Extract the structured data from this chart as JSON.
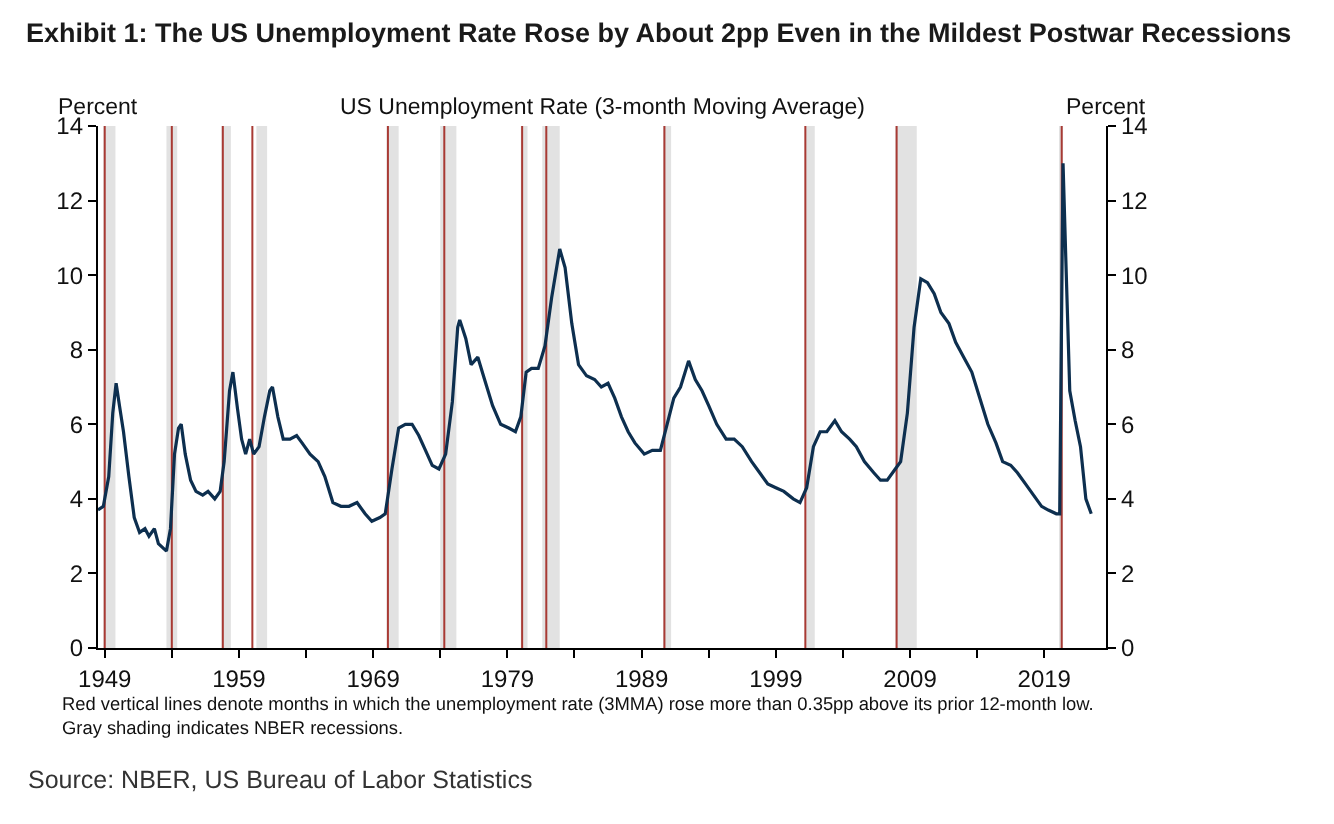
{
  "chart_data": {
    "type": "line",
    "title": "Exhibit 1: The US Unemployment Rate Rose by About 2pp Even in the Mildest Postwar Recessions",
    "subtitle": "US Unemployment Rate (3-month Moving Average)",
    "ylabel": "Percent",
    "y2label": "Percent",
    "x": [
      1948.5,
      1948.9,
      1949.3,
      1949.6,
      1949.85,
      1950.1,
      1950.4,
      1950.8,
      1951.2,
      1951.6,
      1952.0,
      1952.3,
      1952.7,
      1953.0,
      1953.6,
      1953.9,
      1954.2,
      1954.5,
      1954.7,
      1955.0,
      1955.4,
      1955.8,
      1956.3,
      1956.7,
      1957.2,
      1957.6,
      1957.9,
      1958.3,
      1958.55,
      1958.9,
      1959.2,
      1959.5,
      1959.8,
      1960.1,
      1960.5,
      1960.9,
      1961.3,
      1961.5,
      1961.9,
      1962.3,
      1962.8,
      1963.3,
      1963.7,
      1964.3,
      1964.9,
      1965.4,
      1966.0,
      1966.6,
      1967.2,
      1967.8,
      1968.4,
      1968.9,
      1969.5,
      1969.9,
      1970.4,
      1970.9,
      1971.4,
      1971.9,
      1972.4,
      1972.9,
      1973.4,
      1973.9,
      1974.4,
      1974.9,
      1975.3,
      1975.45,
      1975.9,
      1976.3,
      1976.8,
      1977.3,
      1977.9,
      1978.5,
      1979.1,
      1979.6,
      1980.0,
      1980.4,
      1980.8,
      1981.3,
      1981.8,
      1982.3,
      1982.9,
      1983.3,
      1983.8,
      1984.3,
      1984.9,
      1985.5,
      1986.0,
      1986.5,
      1987.0,
      1987.5,
      1988.0,
      1988.5,
      1989.2,
      1989.8,
      1990.4,
      1990.9,
      1991.4,
      1991.9,
      1992.5,
      1993.0,
      1993.5,
      1994.0,
      1994.6,
      1995.3,
      1995.9,
      1996.5,
      1997.2,
      1997.8,
      1998.4,
      1999.0,
      1999.6,
      2000.3,
      2000.8,
      2001.3,
      2001.8,
      2002.3,
      2002.8,
      2003.4,
      2003.9,
      2004.5,
      2005.0,
      2005.6,
      2006.3,
      2006.8,
      2007.3,
      2007.9,
      2008.3,
      2008.8,
      2009.3,
      2009.8,
      2010.3,
      2010.8,
      2011.3,
      2011.9,
      2012.4,
      2013.0,
      2013.6,
      2014.2,
      2014.8,
      2015.4,
      2015.9,
      2016.5,
      2017.0,
      2017.6,
      2018.2,
      2018.8,
      2019.3,
      2019.9,
      2020.15,
      2020.4,
      2020.6,
      2020.9,
      2021.3,
      2021.7,
      2022.1,
      2022.5
    ],
    "series": [
      {
        "color": "#0d2f4f",
        "values": [
          3.7,
          3.8,
          4.6,
          6.3,
          7.1,
          6.5,
          5.8,
          4.6,
          3.5,
          3.1,
          3.2,
          3.0,
          3.2,
          2.8,
          2.6,
          3.2,
          5.2,
          5.9,
          6.0,
          5.2,
          4.5,
          4.2,
          4.1,
          4.2,
          4.0,
          4.2,
          5.0,
          6.9,
          7.4,
          6.4,
          5.6,
          5.2,
          5.6,
          5.2,
          5.4,
          6.2,
          6.9,
          7.0,
          6.2,
          5.6,
          5.6,
          5.7,
          5.5,
          5.2,
          5.0,
          4.6,
          3.9,
          3.8,
          3.8,
          3.9,
          3.6,
          3.4,
          3.5,
          3.6,
          4.8,
          5.9,
          6.0,
          6.0,
          5.7,
          5.3,
          4.9,
          4.8,
          5.2,
          6.6,
          8.6,
          8.8,
          8.3,
          7.6,
          7.8,
          7.2,
          6.5,
          6.0,
          5.9,
          5.8,
          6.2,
          7.4,
          7.5,
          7.5,
          8.1,
          9.4,
          10.7,
          10.2,
          8.7,
          7.6,
          7.3,
          7.2,
          7.0,
          7.1,
          6.7,
          6.2,
          5.8,
          5.5,
          5.2,
          5.3,
          5.3,
          6.0,
          6.7,
          7.0,
          7.7,
          7.2,
          6.9,
          6.5,
          6.0,
          5.6,
          5.6,
          5.4,
          5.0,
          4.7,
          4.4,
          4.3,
          4.2,
          4.0,
          3.9,
          4.3,
          5.4,
          5.8,
          5.8,
          6.1,
          5.8,
          5.6,
          5.4,
          5.0,
          4.7,
          4.5,
          4.5,
          4.8,
          5.0,
          6.3,
          8.6,
          9.9,
          9.8,
          9.5,
          9.0,
          8.7,
          8.2,
          7.8,
          7.4,
          6.7,
          6.0,
          5.5,
          5.0,
          4.9,
          4.7,
          4.4,
          4.1,
          3.8,
          3.7,
          3.6,
          3.6,
          13.0,
          10.5,
          6.9,
          6.1,
          5.4,
          4.0,
          3.6
        ]
      }
    ],
    "xlim": [
      1948.5,
      2023.6
    ],
    "xticks": [
      1949,
      {
        "value": 1954,
        "label": null
      },
      1959,
      {
        "value": 1964,
        "label": null
      },
      1969,
      {
        "value": 1974,
        "label": null
      },
      1979,
      {
        "value": 1984,
        "label": null
      },
      1989,
      {
        "value": 1994,
        "label": null
      },
      1999,
      {
        "value": 2004,
        "label": null
      },
      2009,
      {
        "value": 2014,
        "label": null
      },
      2019
    ],
    "ylim": [
      0,
      14
    ],
    "yticks": [
      0,
      2,
      4,
      6,
      8,
      10,
      12,
      14
    ],
    "y2lim": [
      0,
      14
    ],
    "y2ticks": [
      0,
      2,
      4,
      6,
      8,
      10,
      12,
      14
    ],
    "ref_lines": [
      {
        "axis": "x",
        "value": 1949.0,
        "color": "#a83a34"
      },
      {
        "axis": "x",
        "value": 1954.0,
        "color": "#a83a34"
      },
      {
        "axis": "x",
        "value": 1957.8,
        "color": "#a83a34"
      },
      {
        "axis": "x",
        "value": 1960.0,
        "color": "#a83a34"
      },
      {
        "axis": "x",
        "value": 1970.1,
        "color": "#a83a34"
      },
      {
        "axis": "x",
        "value": 1974.3,
        "color": "#a83a34"
      },
      {
        "axis": "x",
        "value": 1980.1,
        "color": "#a83a34"
      },
      {
        "axis": "x",
        "value": 1981.9,
        "color": "#a83a34"
      },
      {
        "axis": "x",
        "value": 1990.7,
        "color": "#a83a34"
      },
      {
        "axis": "x",
        "value": 2001.2,
        "color": "#a83a34"
      },
      {
        "axis": "x",
        "value": 2008.0,
        "color": "#a83a34"
      },
      {
        "axis": "x",
        "value": 2020.3,
        "color": "#a83a34"
      }
    ],
    "bands": [
      {
        "axis": "x",
        "from": 1948.9,
        "to": 1949.8,
        "color": "#e2e2e2"
      },
      {
        "axis": "x",
        "from": 1953.6,
        "to": 1954.4,
        "color": "#e2e2e2"
      },
      {
        "axis": "x",
        "from": 1957.7,
        "to": 1958.4,
        "color": "#e2e2e2"
      },
      {
        "axis": "x",
        "from": 1960.3,
        "to": 1961.1,
        "color": "#e2e2e2"
      },
      {
        "axis": "x",
        "from": 1970.0,
        "to": 1970.9,
        "color": "#e2e2e2"
      },
      {
        "axis": "x",
        "from": 1974.0,
        "to": 1975.2,
        "color": "#e2e2e2"
      },
      {
        "axis": "x",
        "from": 1980.0,
        "to": 1980.5,
        "color": "#e2e2e2"
      },
      {
        "axis": "x",
        "from": 1981.6,
        "to": 1982.9,
        "color": "#e2e2e2"
      },
      {
        "axis": "x",
        "from": 1990.6,
        "to": 1991.2,
        "color": "#e2e2e2"
      },
      {
        "axis": "x",
        "from": 2001.2,
        "to": 2001.9,
        "color": "#e2e2e2"
      },
      {
        "axis": "x",
        "from": 2007.9,
        "to": 2009.5,
        "color": "#e2e2e2"
      },
      {
        "axis": "x",
        "from": 2020.1,
        "to": 2020.4,
        "color": "#e2e2e2"
      }
    ],
    "annotations": [
      "Red vertical lines denote months in which the unemployment rate (3MMA) rose more than 0.35pp above its prior 12-month low.\nGray shading indicates NBER recessions.",
      "Source: NBER, US Bureau of Labor Statistics"
    ],
    "grid": false,
    "marker": "none",
    "line_style": "solid"
  }
}
